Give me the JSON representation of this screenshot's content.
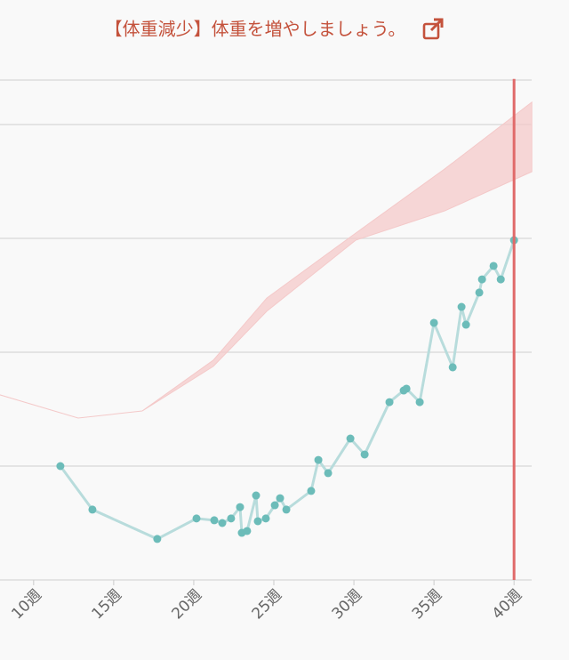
{
  "chart_data": {
    "type": "line",
    "title": "【体重減少】体重を増やしましょう。",
    "title_color": "#c4523c",
    "xlim": [
      7.9,
      41.1
    ],
    "ylim": [
      -5,
      17
    ],
    "xticks": [
      {
        "value": 10,
        "label": "10週"
      },
      {
        "value": 15,
        "label": "15週"
      },
      {
        "value": 20,
        "label": "20週"
      },
      {
        "value": 25,
        "label": "25週"
      },
      {
        "value": 30,
        "label": "30週"
      },
      {
        "value": 35,
        "label": "35週"
      },
      {
        "value": 40,
        "label": "40週"
      }
    ],
    "yticks": [
      -5,
      0,
      5,
      10,
      15
    ],
    "grid": true,
    "band": {
      "color": "#f4c9c9",
      "x": [
        7.89,
        12.78,
        16.78,
        21.22,
        24.56,
        30.11,
        35.67,
        41.11
      ],
      "lower": [
        3.13,
        2.11,
        2.42,
        4.38,
        6.8,
        9.92,
        11.21,
        12.93
      ],
      "upper": [
        3.13,
        2.11,
        2.42,
        4.65,
        7.38,
        10.23,
        13.05,
        15.98
      ]
    },
    "current_week": {
      "x": 40,
      "color": "#e06a6a"
    },
    "series": [
      {
        "color": "#b8dcdc",
        "point_color": "#6cbcb9",
        "x": [
          11.67,
          13.67,
          17.72,
          20.17,
          21.28,
          21.78,
          22.33,
          22.89,
          23.0,
          23.33,
          23.89,
          24.0,
          24.5,
          25.06,
          25.39,
          25.78,
          27.33,
          27.78,
          28.39,
          29.78,
          30.67,
          32.22,
          33.11,
          33.28,
          34.11,
          35.0,
          36.17,
          36.72,
          37.0,
          37.83,
          38.0,
          38.72,
          39.17,
          40.0
        ],
        "values": [
          0,
          -1.91,
          -3.2,
          -2.3,
          -2.38,
          -2.5,
          -2.3,
          -1.8,
          -2.93,
          -2.85,
          -1.29,
          -2.42,
          -2.3,
          -1.72,
          -1.41,
          -1.91,
          -1.09,
          0.27,
          -0.31,
          1.21,
          0.51,
          2.81,
          3.32,
          3.4,
          2.81,
          6.29,
          4.34,
          6.99,
          6.21,
          7.62,
          8.2,
          8.79,
          8.2,
          9.92
        ]
      }
    ]
  }
}
